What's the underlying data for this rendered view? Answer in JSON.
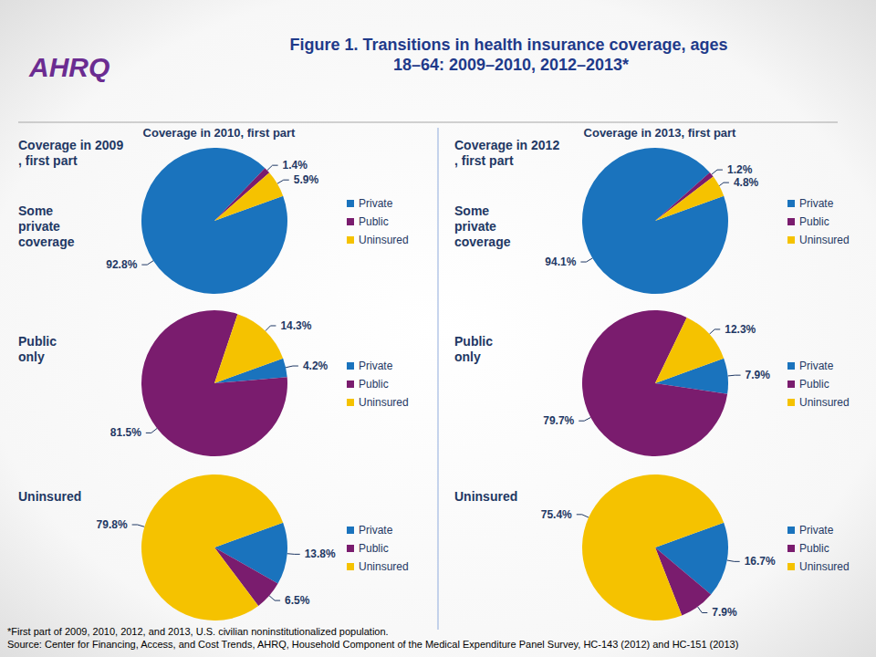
{
  "title": "Figure 1. Transitions in health insurance coverage, ages 18–64: 2009–2010, 2012–2013*",
  "logo": "AHRQ",
  "footnotes": [
    "*First part of 2009, 2010, 2012, and 2013, U.S. civilian noninstitutionalized population.",
    "Source: Center for Financing, Access, and Cost Trends, AHRQ, Household Component of the Medical Expenditure Panel Survey, HC-143 (2012) and HC-151 (2013)"
  ],
  "panels": [
    {
      "header": "Coverage in 2010, first part",
      "row_header": "Coverage in 2009, first part"
    },
    {
      "header": "Coverage in 2013, first part",
      "row_header": "Coverage in 2012, first part"
    }
  ],
  "chart_data": [
    {
      "type": "pie",
      "title": "Some private coverage",
      "categories": [
        "Private",
        "Public",
        "Uninsured"
      ],
      "values": [
        92.8,
        1.4,
        5.9
      ],
      "value_labels": [
        "92.8%",
        "1.4%",
        "5.9%"
      ],
      "colors": [
        "#1a73bd",
        "#7a1c6e",
        "#f5c200"
      ],
      "data_labels": true,
      "legend": "right"
    },
    {
      "type": "pie",
      "title": "Public only",
      "categories": [
        "Private",
        "Public",
        "Uninsured"
      ],
      "values": [
        4.2,
        81.5,
        14.3
      ],
      "value_labels": [
        "4.2%",
        "81.5%",
        "14.3%"
      ],
      "colors": [
        "#1a73bd",
        "#7a1c6e",
        "#f5c200"
      ],
      "data_labels": true,
      "legend": "right"
    },
    {
      "type": "pie",
      "title": "Uninsured",
      "categories": [
        "Private",
        "Public",
        "Uninsured"
      ],
      "values": [
        13.8,
        6.5,
        79.8
      ],
      "value_labels": [
        "13.8%",
        "6.5%",
        "79.8%"
      ],
      "colors": [
        "#1a73bd",
        "#7a1c6e",
        "#f5c200"
      ],
      "data_labels": true,
      "legend": "right"
    },
    {
      "type": "pie",
      "title": "Some private coverage",
      "categories": [
        "Private",
        "Public",
        "Uninsured"
      ],
      "values": [
        94.1,
        1.2,
        4.8
      ],
      "value_labels": [
        "94.1%",
        "1.2%",
        "4.8%"
      ],
      "colors": [
        "#1a73bd",
        "#7a1c6e",
        "#f5c200"
      ],
      "data_labels": true,
      "legend": "right"
    },
    {
      "type": "pie",
      "title": "Public only",
      "categories": [
        "Private",
        "Public",
        "Uninsured"
      ],
      "values": [
        7.9,
        79.7,
        12.3
      ],
      "value_labels": [
        "7.9%",
        "79.7%",
        "12.3%"
      ],
      "colors": [
        "#1a73bd",
        "#7a1c6e",
        "#f5c200"
      ],
      "data_labels": true,
      "legend": "right"
    },
    {
      "type": "pie",
      "title": "Uninsured",
      "categories": [
        "Private",
        "Public",
        "Uninsured"
      ],
      "values": [
        16.7,
        7.9,
        75.4
      ],
      "value_labels": [
        "16.7%",
        "7.9%",
        "75.4%"
      ],
      "colors": [
        "#1a73bd",
        "#7a1c6e",
        "#f5c200"
      ],
      "data_labels": true,
      "legend": "right"
    }
  ]
}
